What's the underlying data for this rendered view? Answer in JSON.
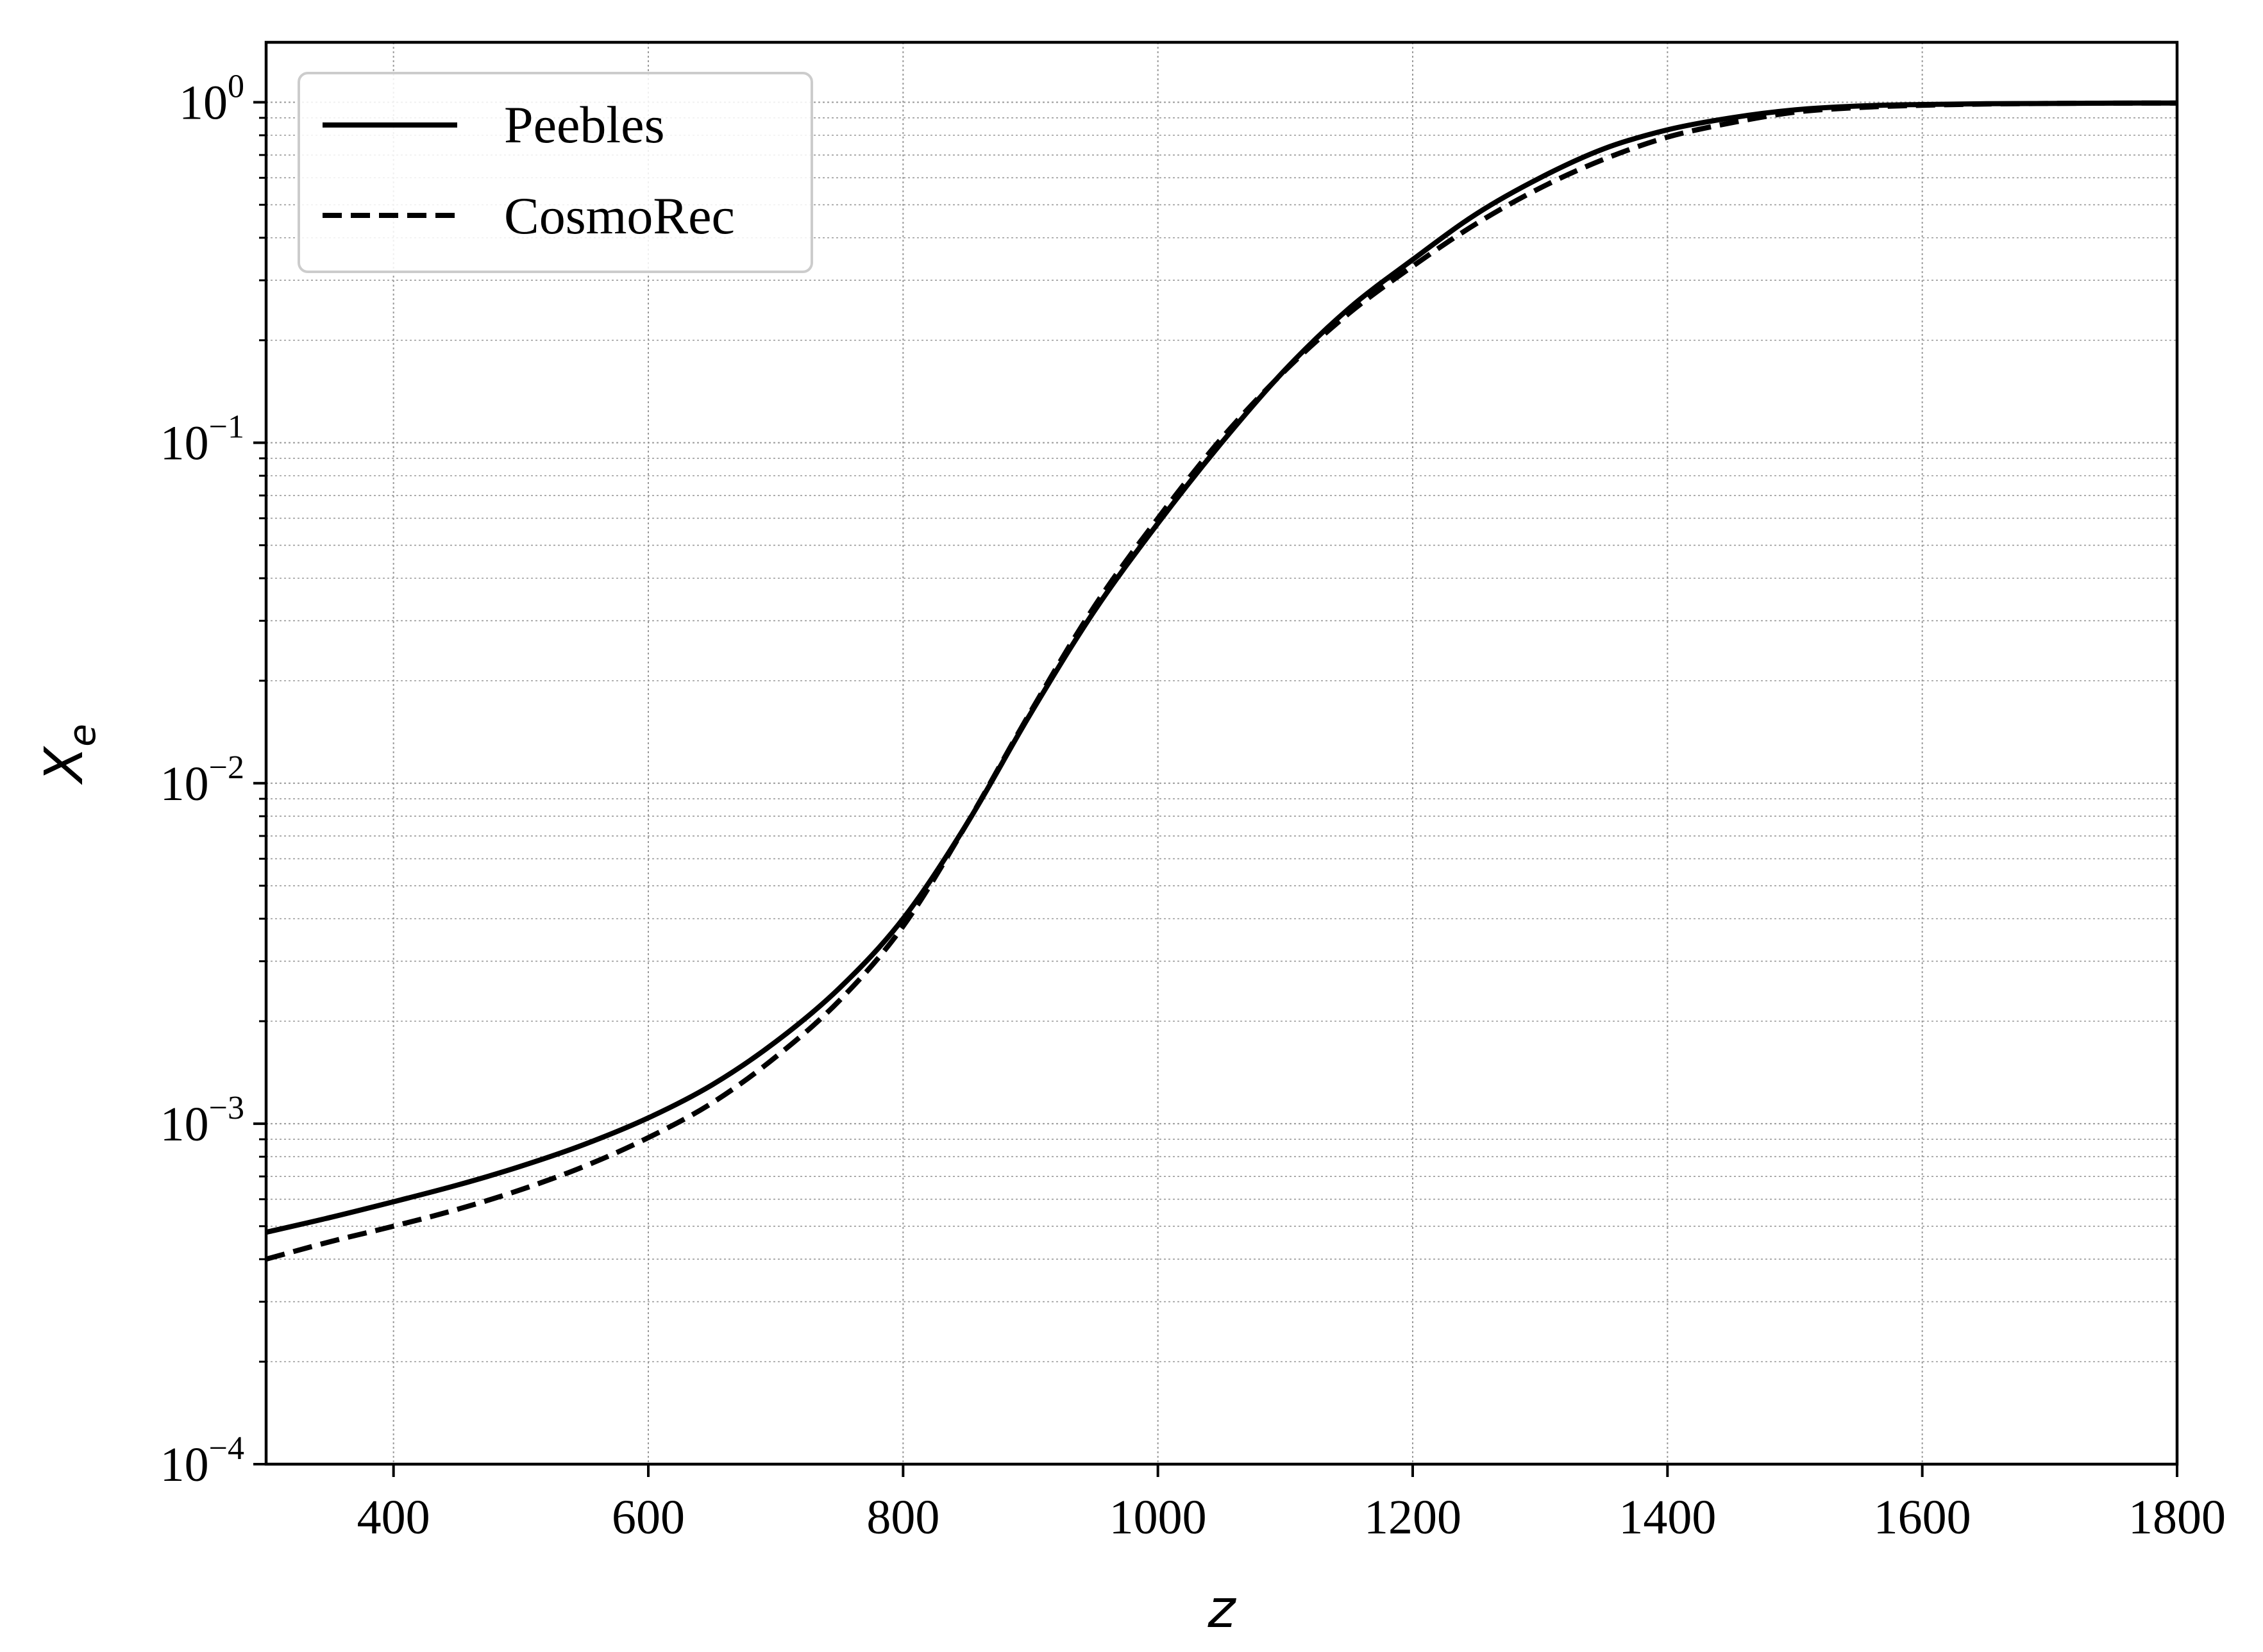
{
  "chart_data": {
    "type": "line",
    "title": "",
    "xlabel": "z",
    "ylabel": {
      "main": "X",
      "sub": "e"
    },
    "xlim": [
      300,
      1800
    ],
    "ylim": [
      0.0001,
      1.5
    ],
    "yscale": "log",
    "grid": true,
    "legend_position": "top-left",
    "x_ticks": [
      "400",
      "600",
      "800",
      "1000",
      "1200",
      "1400",
      "1600",
      "1800"
    ],
    "y_ticks": [
      {
        "value": 0.0001,
        "base": "10",
        "exp": "−4"
      },
      {
        "value": 0.001,
        "base": "10",
        "exp": "−3"
      },
      {
        "value": 0.01,
        "base": "10",
        "exp": "−2"
      },
      {
        "value": 0.1,
        "base": "10",
        "exp": "−1"
      },
      {
        "value": 1,
        "base": "10",
        "exp": "0"
      }
    ],
    "x": [
      300,
      350,
      400,
      450,
      500,
      550,
      600,
      650,
      700,
      750,
      800,
      850,
      900,
      950,
      1000,
      1050,
      1100,
      1150,
      1200,
      1250,
      1300,
      1350,
      1400,
      1450,
      1500,
      1550,
      1600,
      1650,
      1700,
      1750,
      1800
    ],
    "series": [
      {
        "name": "Peebles",
        "style": "solid",
        "color": "#000000",
        "values": [
          0.00048,
          0.00053,
          0.00059,
          0.00066,
          0.00075,
          0.00087,
          0.00104,
          0.0013,
          0.00174,
          0.0025,
          0.004,
          0.0076,
          0.016,
          0.032,
          0.058,
          0.1,
          0.164,
          0.248,
          0.345,
          0.47,
          0.6,
          0.73,
          0.83,
          0.9,
          0.95,
          0.975,
          0.985,
          0.99,
          0.992,
          0.994,
          0.995
        ]
      },
      {
        "name": "CosmoRec",
        "style": "dashed",
        "color": "#000000",
        "values": [
          0.0004,
          0.00045,
          0.0005,
          0.00056,
          0.00064,
          0.00075,
          0.00091,
          0.00115,
          0.00157,
          0.0023,
          0.0038,
          0.0076,
          0.0162,
          0.033,
          0.06,
          0.103,
          0.163,
          0.24,
          0.33,
          0.44,
          0.56,
          0.68,
          0.79,
          0.87,
          0.935,
          0.965,
          0.98,
          0.988,
          0.992,
          0.994,
          0.995
        ]
      }
    ]
  }
}
